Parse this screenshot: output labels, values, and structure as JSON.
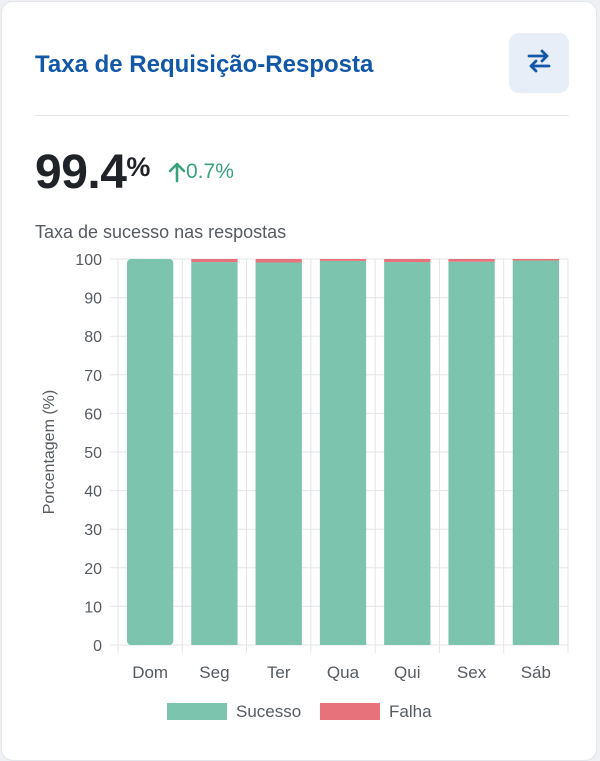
{
  "card": {
    "title": "Taxa de Requisição-Resposta",
    "swap_icon": "swap-arrows-icon",
    "value": "99.4",
    "value_unit": "%",
    "delta_icon": "arrow-up-icon",
    "delta": "0.7%",
    "subtitle": "Taxa de sucesso nas respostas"
  },
  "colors": {
    "title": "#1257a8",
    "success": "#7cc4ae",
    "failure": "#e8727c",
    "delta": "#3aa27b"
  },
  "chart_data": {
    "type": "bar",
    "stacked": true,
    "categories": [
      "Dom",
      "Seg",
      "Ter",
      "Qua",
      "Qui",
      "Sex",
      "Sáb"
    ],
    "series": [
      {
        "name": "Sucesso",
        "values": [
          100,
          99.2,
          99.1,
          99.5,
          99.2,
          99.3,
          99.6
        ]
      },
      {
        "name": "Falha",
        "values": [
          0,
          0.8,
          0.9,
          0.5,
          0.8,
          0.7,
          0.4
        ]
      }
    ],
    "ylabel": "Porcentagem (%)",
    "xlabel": "",
    "ylim": [
      0,
      100
    ],
    "yticks": [
      0,
      10,
      20,
      30,
      40,
      50,
      60,
      70,
      80,
      90,
      100
    ],
    "grid": true,
    "legend": "bottom"
  }
}
